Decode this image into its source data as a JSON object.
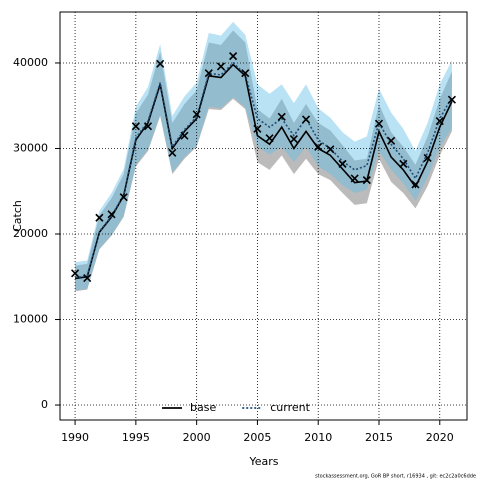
{
  "chart_data": {
    "type": "band-line",
    "x_label": "Years",
    "y_label": "Catch",
    "footer": "stockassessment.org, GoR BP short, r16934 , git: ec2c2a0c6dde",
    "x": [
      1990,
      1991,
      1992,
      1993,
      1994,
      1995,
      1996,
      1997,
      1998,
      1999,
      2000,
      2001,
      2002,
      2003,
      2004,
      2005,
      2006,
      2007,
      2008,
      2009,
      2010,
      2011,
      2012,
      2013,
      2014,
      2015,
      2016,
      2017,
      2018,
      2019,
      2020,
      2021
    ],
    "xlim": [
      1988.76,
      2022.24
    ],
    "xticks": [
      1990,
      1995,
      2000,
      2005,
      2010,
      2015,
      2020
    ],
    "ylim": [
      -1750,
      45960
    ],
    "yticks": [
      0,
      10000,
      20000,
      30000,
      40000
    ],
    "grid": true,
    "legend": "bottom",
    "observed": {
      "color": "#000000",
      "values": [
        15400,
        14850,
        21900,
        22300,
        24300,
        32600,
        32600,
        39900,
        29500,
        31500,
        34000,
        38800,
        39600,
        40800,
        38800,
        32300,
        31200,
        33700,
        31100,
        33400,
        30200,
        29900,
        28200,
        26500,
        26300,
        32900,
        30900,
        28200,
        25800,
        28900,
        33200,
        35700
      ]
    },
    "series": [
      {
        "name": "base",
        "color": "#000000",
        "band_color": "rgba(60,60,60,0.35)",
        "values": [
          14800,
          15000,
          20200,
          22000,
          24500,
          31000,
          33000,
          37500,
          30000,
          32000,
          33500,
          38500,
          38300,
          39800,
          38500,
          31500,
          30500,
          32500,
          30000,
          32000,
          30000,
          29200,
          27600,
          26000,
          26200,
          32000,
          29000,
          27500,
          25500,
          28500,
          32500,
          35500
        ],
        "lower": [
          13300,
          13500,
          18200,
          19800,
          22000,
          27900,
          29700,
          33800,
          27000,
          28800,
          30200,
          34600,
          34500,
          35800,
          34600,
          28400,
          27500,
          29200,
          27000,
          28800,
          27000,
          26300,
          24800,
          23400,
          23600,
          28800,
          26100,
          24800,
          23000,
          25600,
          29200,
          32000
        ],
        "upper": [
          16300,
          16500,
          22200,
          24200,
          27000,
          34100,
          36300,
          41300,
          33000,
          35200,
          36800,
          42400,
          42100,
          43800,
          42400,
          34600,
          33500,
          35800,
          33000,
          35200,
          33000,
          32100,
          30400,
          28600,
          28800,
          35200,
          31900,
          30200,
          28100,
          31400,
          35800,
          39000
        ]
      },
      {
        "name": "current",
        "color": "#1f4e79",
        "band_color": "rgba(100,190,230,0.45)",
        "values": [
          14900,
          15100,
          20300,
          22100,
          24600,
          31200,
          33200,
          37700,
          30200,
          32200,
          33700,
          38800,
          38600,
          40000,
          38700,
          33500,
          32500,
          33500,
          31500,
          33500,
          31000,
          30000,
          28500,
          27500,
          28000,
          33000,
          30500,
          28800,
          26500,
          29500,
          33500,
          36000
        ],
        "lower": [
          13400,
          13600,
          18300,
          19900,
          22100,
          28100,
          29900,
          33900,
          27200,
          29000,
          30300,
          34900,
          34700,
          36000,
          34800,
          30200,
          29300,
          30200,
          28400,
          30200,
          27900,
          27000,
          25700,
          24800,
          25200,
          29700,
          27500,
          25900,
          23900,
          26600,
          30200,
          32400
        ],
        "upper": [
          16700,
          16900,
          22700,
          24800,
          27600,
          34900,
          37200,
          42200,
          33800,
          36100,
          37700,
          43500,
          43200,
          44800,
          43300,
          37500,
          36400,
          37500,
          35300,
          37500,
          34700,
          33600,
          31900,
          30800,
          31400,
          37000,
          34200,
          32300,
          29700,
          33000,
          37500,
          40300
        ]
      }
    ]
  }
}
